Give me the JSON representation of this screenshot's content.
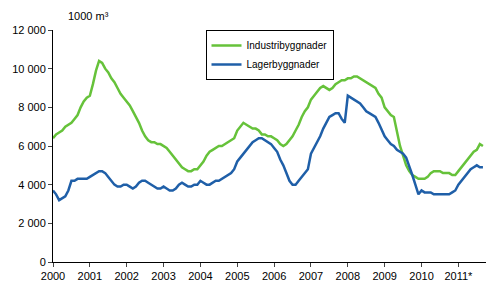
{
  "chart_data": {
    "type": "line",
    "y_label": "1000 m³",
    "categories": [
      "2000",
      null,
      null,
      null,
      null,
      null,
      null,
      null,
      null,
      null,
      null,
      null,
      "2001",
      null,
      null,
      null,
      null,
      null,
      null,
      null,
      null,
      null,
      null,
      null,
      "2002",
      null,
      null,
      null,
      null,
      null,
      null,
      null,
      null,
      null,
      null,
      null,
      "2003",
      null,
      null,
      null,
      null,
      null,
      null,
      null,
      null,
      null,
      null,
      null,
      "2004",
      null,
      null,
      null,
      null,
      null,
      null,
      null,
      null,
      null,
      null,
      null,
      "2005",
      null,
      null,
      null,
      null,
      null,
      null,
      null,
      null,
      null,
      null,
      null,
      "2006",
      null,
      null,
      null,
      null,
      null,
      null,
      null,
      null,
      null,
      null,
      null,
      "2007",
      null,
      null,
      null,
      null,
      null,
      null,
      null,
      null,
      null,
      null,
      null,
      "2008",
      null,
      null,
      null,
      null,
      null,
      null,
      null,
      null,
      null,
      null,
      null,
      "2009",
      null,
      null,
      null,
      null,
      null,
      null,
      null,
      null,
      null,
      null,
      null,
      "2010",
      null,
      null,
      null,
      null,
      null,
      null,
      null,
      null,
      null,
      null,
      null,
      "2011*",
      null,
      null,
      null,
      null,
      null,
      null,
      null,
      null
    ],
    "series": [
      {
        "name": "Industribyggnader",
        "color": "#66c23a",
        "values": [
          6400,
          6600,
          6700,
          6800,
          7000,
          7100,
          7200,
          7400,
          7600,
          8000,
          8300,
          8500,
          8600,
          9200,
          9900,
          10400,
          10300,
          10000,
          9800,
          9500,
          9300,
          9000,
          8700,
          8500,
          8300,
          8100,
          7800,
          7500,
          7200,
          6800,
          6500,
          6300,
          6200,
          6200,
          6100,
          6100,
          6000,
          5900,
          5700,
          5500,
          5300,
          5100,
          4900,
          4800,
          4700,
          4700,
          4800,
          4800,
          5000,
          5200,
          5500,
          5700,
          5800,
          5900,
          6000,
          6000,
          6100,
          6200,
          6300,
          6400,
          6800,
          7000,
          7200,
          7100,
          7000,
          6900,
          6900,
          6800,
          6600,
          6600,
          6500,
          6500,
          6400,
          6300,
          6100,
          6000,
          6100,
          6300,
          6500,
          6800,
          7100,
          7500,
          7800,
          8000,
          8400,
          8600,
          8800,
          9000,
          9100,
          9000,
          8900,
          9000,
          9200,
          9300,
          9400,
          9400,
          9500,
          9500,
          9600,
          9600,
          9500,
          9400,
          9300,
          9200,
          9100,
          9000,
          8700,
          8500,
          8000,
          7800,
          7600,
          7500,
          6800,
          6000,
          5500,
          5000,
          4700,
          4500,
          4400,
          4300,
          4300,
          4300,
          4400,
          4600,
          4700,
          4700,
          4700,
          4600,
          4600,
          4600,
          4500,
          4500,
          4700,
          4900,
          5100,
          5300,
          5500,
          5700,
          5800,
          6100,
          6000
        ]
      },
      {
        "name": "Lagerbyggnader",
        "color": "#1f5fa8",
        "values": [
          3700,
          3500,
          3200,
          3300,
          3400,
          3700,
          4200,
          4200,
          4300,
          4300,
          4300,
          4300,
          4400,
          4500,
          4600,
          4700,
          4700,
          4600,
          4400,
          4200,
          4000,
          3900,
          3900,
          4000,
          4000,
          3900,
          3800,
          3900,
          4100,
          4200,
          4200,
          4100,
          4000,
          3900,
          3800,
          3800,
          3900,
          3800,
          3700,
          3700,
          3800,
          4000,
          4100,
          4000,
          3900,
          3900,
          4000,
          4000,
          4200,
          4100,
          4000,
          4000,
          4100,
          4200,
          4200,
          4300,
          4400,
          4500,
          4600,
          4800,
          5200,
          5400,
          5600,
          5800,
          6000,
          6200,
          6300,
          6400,
          6400,
          6300,
          6200,
          6100,
          5900,
          5700,
          5300,
          5000,
          4600,
          4200,
          4000,
          4000,
          4200,
          4400,
          4600,
          4800,
          5600,
          5900,
          6200,
          6500,
          6900,
          7200,
          7500,
          7600,
          7700,
          7700,
          7400,
          7200,
          8600,
          8500,
          8400,
          8300,
          8200,
          8000,
          7800,
          7700,
          7600,
          7500,
          7200,
          6800,
          6500,
          6300,
          6100,
          6000,
          5800,
          5700,
          5600,
          5400,
          5000,
          4500,
          4000,
          3500,
          3700,
          3600,
          3600,
          3600,
          3500,
          3500,
          3500,
          3500,
          3500,
          3500,
          3600,
          3700,
          4000,
          4200,
          4400,
          4600,
          4800,
          4900,
          5000,
          4900,
          4900
        ]
      }
    ],
    "ylim": [
      0,
      12000
    ],
    "yticks": [
      0,
      {
        "value": 2000,
        "label": "2 000"
      },
      {
        "value": 4000,
        "label": "4 000"
      },
      {
        "value": 6000,
        "label": "6 000"
      },
      {
        "value": 8000,
        "label": "8 000"
      },
      {
        "value": 10000,
        "label": "10 000"
      },
      {
        "value": 12000,
        "label": "12 000"
      }
    ],
    "grid": false,
    "legend": "upper center"
  }
}
